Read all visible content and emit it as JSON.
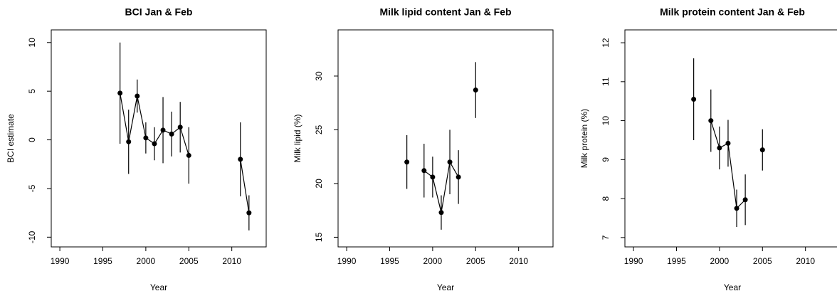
{
  "chart_data": [
    {
      "type": "line",
      "title": "BCI Jan & Feb",
      "x_label": "Year",
      "y_label": "BCI estimate",
      "x": [
        1997,
        1998,
        1999,
        2000,
        2001,
        2002,
        2003,
        2004,
        2005,
        2006,
        2007,
        2008,
        2009,
        2010,
        2011,
        2012
      ],
      "values": [
        4.8,
        -0.2,
        4.5,
        0.2,
        -0.4,
        1.0,
        0.6,
        1.3,
        -1.6,
        null,
        null,
        null,
        null,
        null,
        -2.0,
        -7.5
      ],
      "errors": [
        5.2,
        3.3,
        1.7,
        1.6,
        1.7,
        3.4,
        2.3,
        2.6,
        2.9,
        null,
        null,
        null,
        null,
        null,
        3.8,
        1.8
      ],
      "color": "#000000",
      "xlim": [
        1989,
        2014
      ],
      "xticks": [
        1990,
        1995,
        2000,
        2005,
        2010
      ],
      "ylim": [
        -11,
        11.3
      ],
      "yticks": [
        -10,
        -5,
        0,
        5,
        10
      ]
    },
    {
      "type": "line",
      "title": "Milk lipid content Jan & Feb",
      "x_label": "Year",
      "y_label": "Milk lipid (%)",
      "x": [
        1997,
        1998,
        1999,
        2000,
        2001,
        2002,
        2003,
        2004,
        2005
      ],
      "values": [
        22.0,
        null,
        21.2,
        20.6,
        17.3,
        22.0,
        20.6,
        null,
        28.7
      ],
      "errors": [
        2.5,
        null,
        2.5,
        1.9,
        1.6,
        3.0,
        2.5,
        null,
        2.6
      ],
      "color": "#000000",
      "xlim": [
        1989,
        2014
      ],
      "xticks": [
        1990,
        1995,
        2000,
        2005,
        2010
      ],
      "ylim": [
        14.1,
        34.3
      ],
      "yticks": [
        15,
        20,
        25,
        30
      ]
    },
    {
      "type": "line",
      "title": "Milk protein content Jan & Feb",
      "x_label": "Year",
      "y_label": "Milk protein (%)",
      "x": [
        1997,
        1998,
        1999,
        2000,
        2001,
        2002,
        2003,
        2004,
        2005
      ],
      "values": [
        10.55,
        null,
        10.0,
        9.3,
        9.42,
        7.75,
        7.97,
        null,
        9.25
      ],
      "errors": [
        1.05,
        null,
        0.8,
        0.55,
        0.6,
        0.48,
        0.65,
        null,
        0.53
      ],
      "color": "#000000",
      "xlim": [
        1989,
        2014
      ],
      "xticks": [
        1990,
        1995,
        2000,
        2005,
        2010
      ],
      "ylim": [
        6.76,
        12.33
      ],
      "yticks": [
        7,
        8,
        9,
        10,
        11,
        12
      ]
    }
  ]
}
